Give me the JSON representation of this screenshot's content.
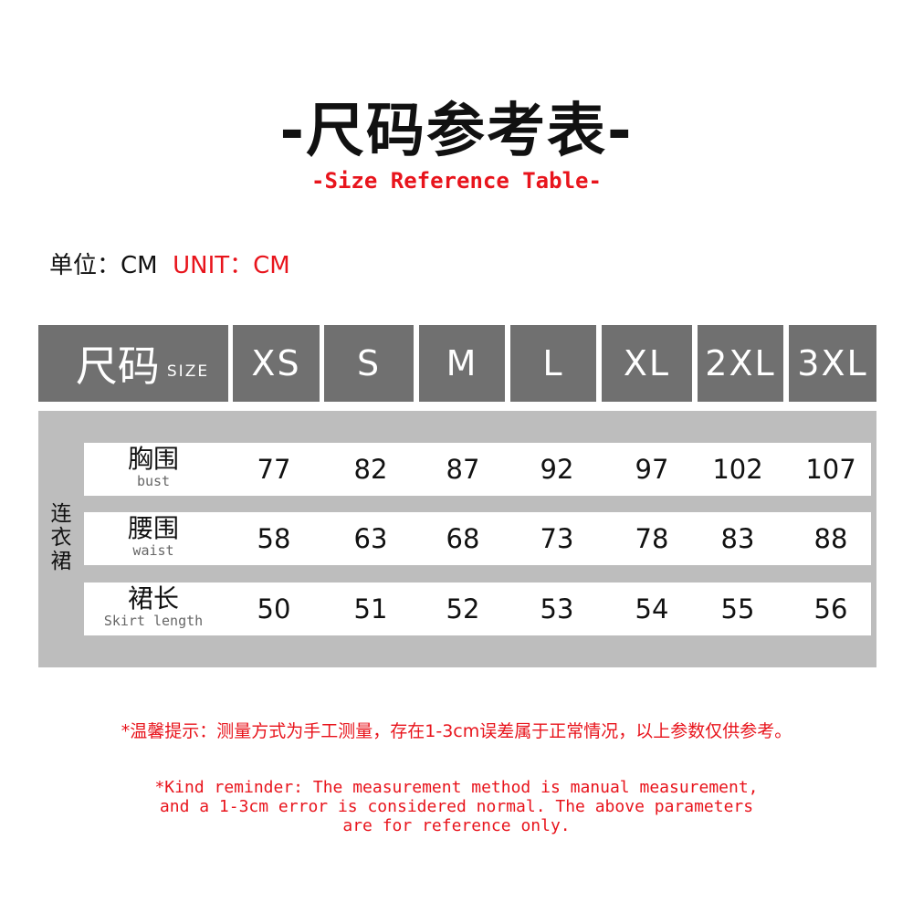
{
  "title": "-尺码参考表-",
  "subtitle": "-Size Reference Table-",
  "unit": {
    "cn": "单位：CM",
    "en": "UNIT：CM"
  },
  "colors": {
    "header": "#707070",
    "body": "#bdbdbd",
    "accent": "#e8141c"
  },
  "table": {
    "header_label_cn": "尺码",
    "header_label_en": "SIZE",
    "sizes": [
      "XS",
      "S",
      "M",
      "L",
      "XL",
      "2XL",
      "3XL"
    ],
    "category": "连衣裙",
    "rows": [
      {
        "cn": "胸围",
        "en": "bust",
        "values": [
          "77",
          "82",
          "87",
          "92",
          "97",
          "102",
          "107"
        ]
      },
      {
        "cn": "腰围",
        "en": "waist",
        "values": [
          "58",
          "63",
          "68",
          "73",
          "78",
          "83",
          "88"
        ]
      },
      {
        "cn": "裙长",
        "en": "Skirt length",
        "values": [
          "50",
          "51",
          "52",
          "53",
          "54",
          "55",
          "56"
        ]
      }
    ]
  },
  "note_cn": "*温馨提示：测量方式为手工测量，存在1-3cm误差属于正常情况，以上参数仅供参考。",
  "note_en": "*Kind reminder: The measurement method is manual measurement,\nand a 1-3cm error is considered normal. The above parameters\nare for reference only."
}
